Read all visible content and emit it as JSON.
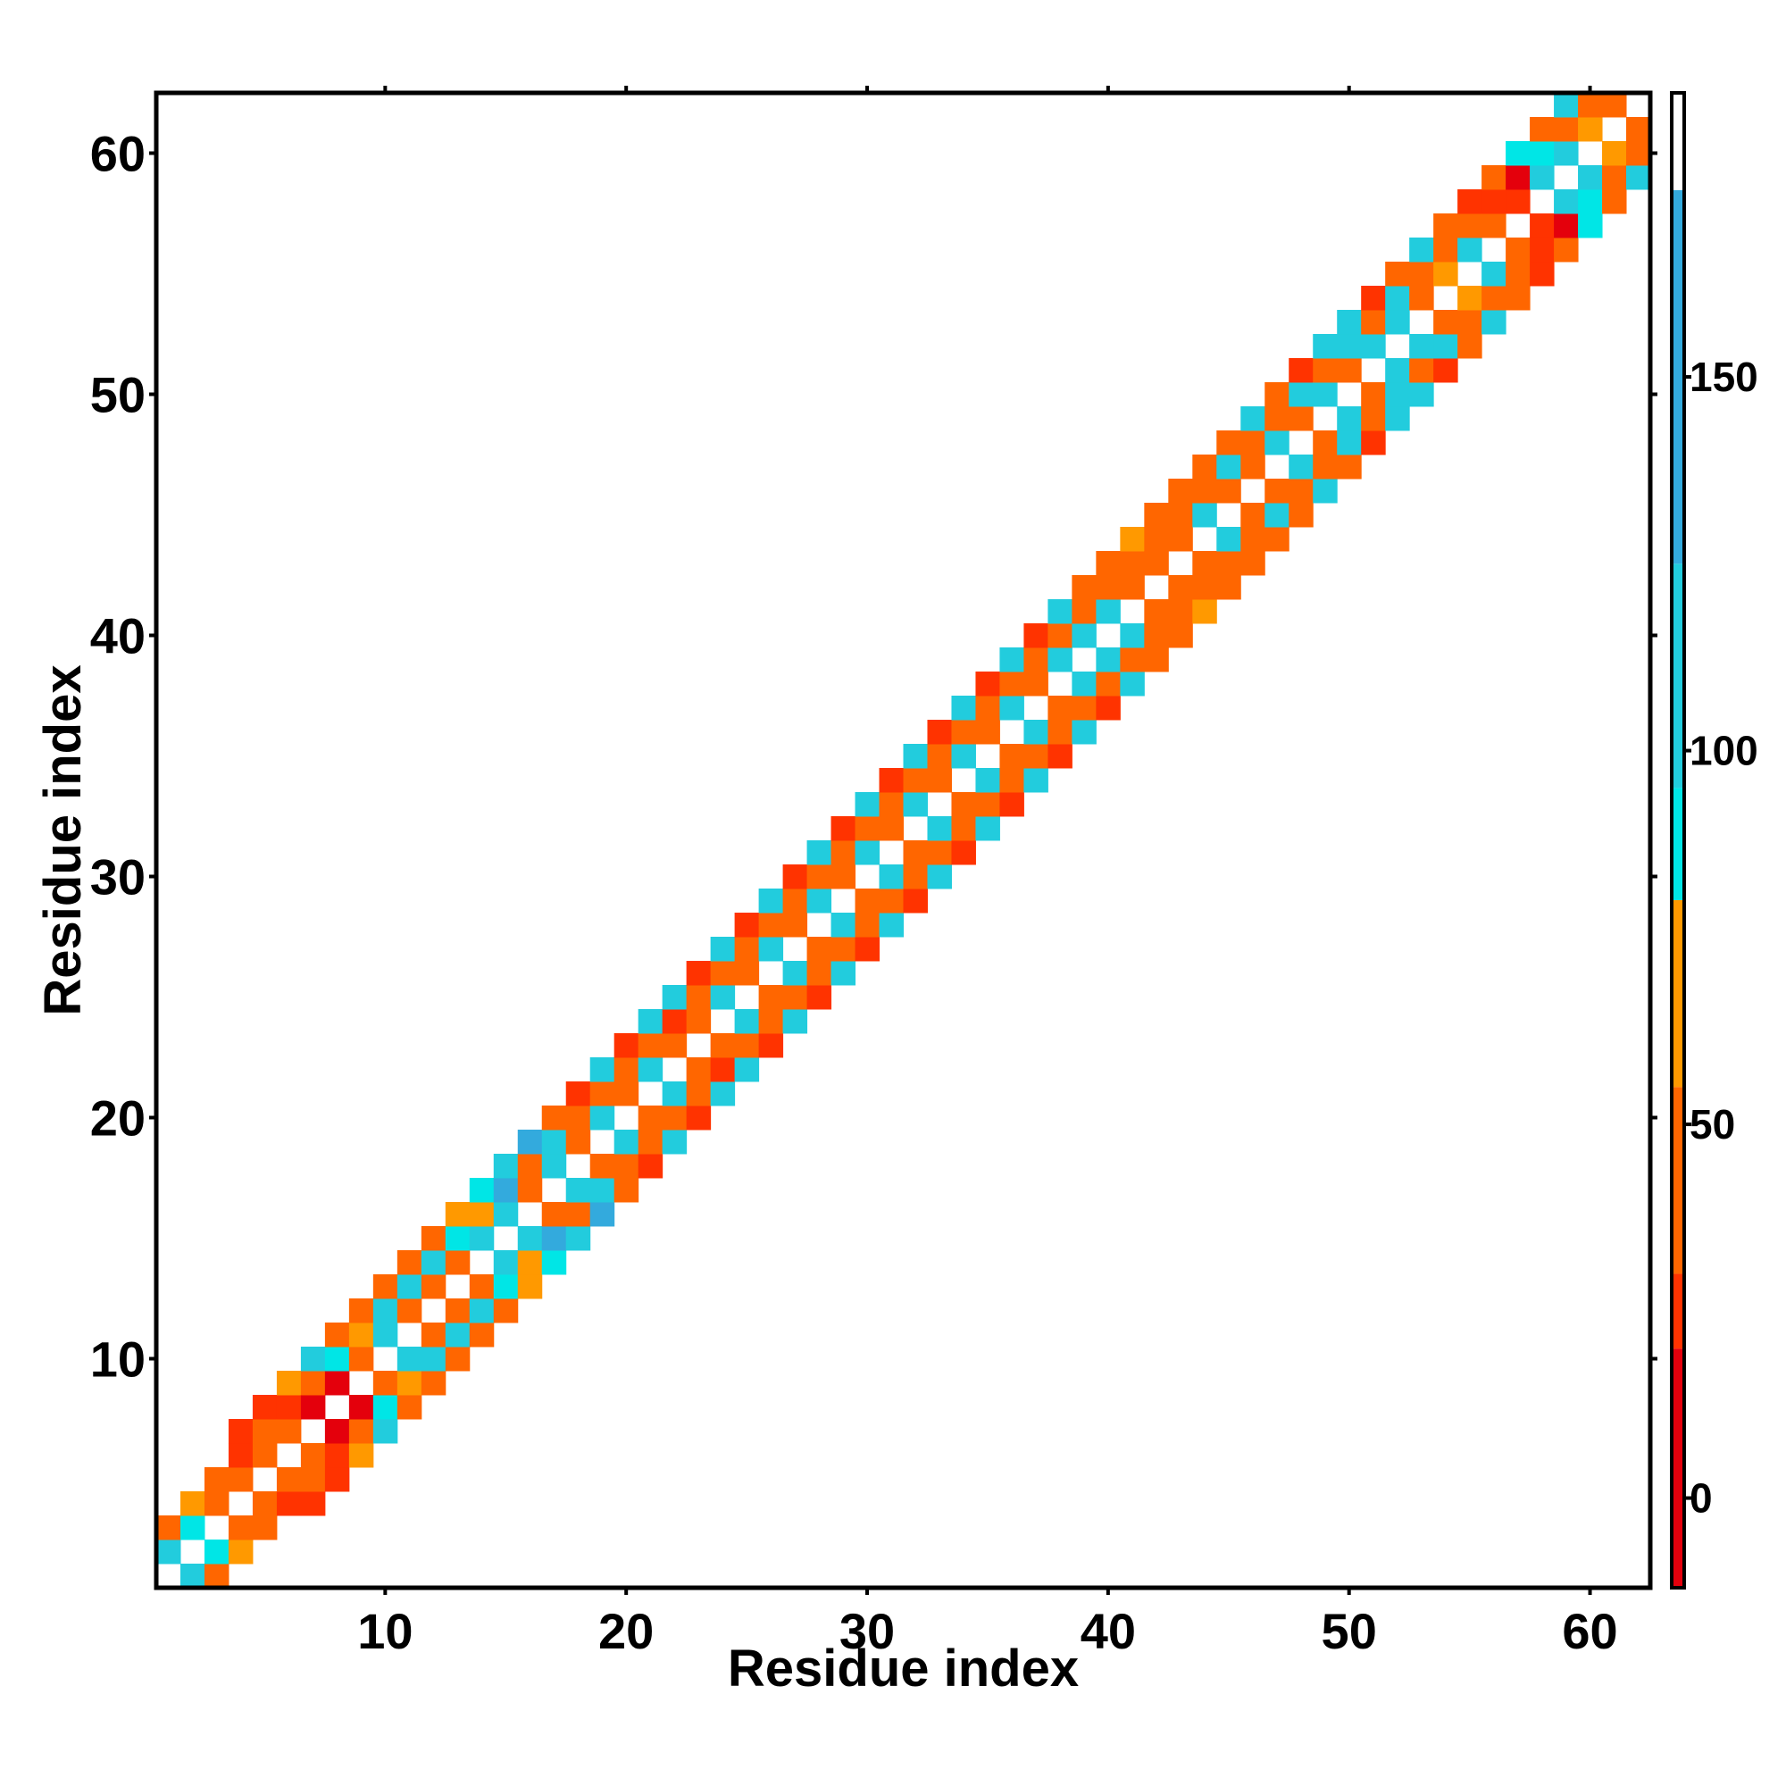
{
  "chart_data": {
    "type": "heatmap",
    "title": "",
    "xlabel": "Residue index",
    "ylabel": "Residue index",
    "xlim": [
      0.5,
      62.5
    ],
    "ylim": [
      0.5,
      62.5
    ],
    "x_ticks": [
      10,
      20,
      30,
      40,
      50,
      60
    ],
    "y_ticks": [
      10,
      20,
      30,
      40,
      50,
      60
    ],
    "n": 62,
    "diagonal_band_halfwidth": 3,
    "grid": false,
    "colorbar": {
      "range": [
        -12,
        188
      ],
      "ticks": [
        0,
        50,
        100,
        150
      ],
      "color_stops": [
        {
          "from": -12,
          "to": 20,
          "color": "#e4000c"
        },
        {
          "from": 20,
          "to": 30,
          "color": "#ff3300"
        },
        {
          "from": 30,
          "to": 55,
          "color": "#ff6600"
        },
        {
          "from": 55,
          "to": 80,
          "color": "#ff9900"
        },
        {
          "from": 80,
          "to": 95,
          "color": "#00e6e6"
        },
        {
          "from": 95,
          "to": 125,
          "color": "#22ccdd"
        },
        {
          "from": 125,
          "to": 175,
          "color": "#33aadd"
        },
        {
          "from": 175,
          "to": 188,
          "color": "#ffffff"
        }
      ]
    },
    "colormap_values": {
      "red": 5,
      "orange_red": 25,
      "orange": 42,
      "amber": 65,
      "cyan": 88,
      "turquoise": 110,
      "sky_blue": 140,
      "steel_blue": 165
    },
    "cells_note": "Symmetric contact map; value matrix entries for i<j listed in upper_triangle as [i, j, value], cells with |i-j|>3 are empty",
    "upper_triangle": [
      [
        1,
        2,
        110
      ],
      [
        1,
        3,
        30
      ],
      [
        2,
        3,
        88
      ],
      [
        2,
        4,
        65
      ],
      [
        3,
        4,
        42
      ],
      [
        3,
        5,
        42
      ],
      [
        4,
        5,
        30
      ],
      [
        4,
        6,
        25
      ],
      [
        4,
        7,
        20
      ],
      [
        5,
        6,
        30
      ],
      [
        5,
        7,
        42
      ],
      [
        5,
        8,
        20
      ],
      [
        6,
        7,
        30
      ],
      [
        6,
        8,
        20
      ],
      [
        6,
        9,
        65
      ],
      [
        7,
        8,
        5
      ],
      [
        7,
        9,
        30
      ],
      [
        7,
        10,
        110
      ],
      [
        8,
        9,
        5
      ],
      [
        8,
        10,
        88
      ],
      [
        8,
        11,
        42
      ],
      [
        9,
        10,
        42
      ],
      [
        9,
        11,
        65
      ],
      [
        9,
        12,
        42
      ],
      [
        10,
        11,
        110
      ],
      [
        10,
        12,
        110
      ],
      [
        10,
        13,
        42
      ],
      [
        11,
        12,
        42
      ],
      [
        11,
        13,
        110
      ],
      [
        11,
        14,
        42
      ],
      [
        12,
        13,
        42
      ],
      [
        12,
        14,
        110
      ],
      [
        12,
        15,
        42
      ],
      [
        13,
        14,
        42
      ],
      [
        13,
        15,
        88
      ],
      [
        13,
        16,
        65
      ],
      [
        14,
        15,
        110
      ],
      [
        14,
        16,
        65
      ],
      [
        14,
        17,
        88
      ],
      [
        15,
        16,
        110
      ],
      [
        15,
        17,
        140
      ],
      [
        15,
        18,
        110
      ],
      [
        16,
        17,
        42
      ],
      [
        16,
        18,
        42
      ],
      [
        16,
        19,
        140
      ],
      [
        17,
        18,
        110
      ],
      [
        17,
        19,
        110
      ],
      [
        17,
        20,
        42
      ],
      [
        18,
        19,
        30
      ],
      [
        18,
        20,
        42
      ],
      [
        18,
        21,
        25
      ],
      [
        19,
        20,
        110
      ],
      [
        19,
        21,
        42
      ],
      [
        19,
        22,
        110
      ],
      [
        20,
        21,
        42
      ],
      [
        20,
        22,
        30
      ],
      [
        20,
        23,
        25
      ],
      [
        21,
        22,
        110
      ],
      [
        21,
        23,
        42
      ],
      [
        21,
        24,
        110
      ],
      [
        22,
        23,
        42
      ],
      [
        22,
        24,
        25
      ],
      [
        22,
        25,
        110
      ],
      [
        23,
        24,
        42
      ],
      [
        23,
        25,
        30
      ],
      [
        23,
        26,
        25
      ],
      [
        24,
        25,
        110
      ],
      [
        24,
        26,
        42
      ],
      [
        24,
        27,
        110
      ],
      [
        25,
        26,
        42
      ],
      [
        25,
        27,
        30
      ],
      [
        25,
        28,
        25
      ],
      [
        26,
        27,
        110
      ],
      [
        26,
        28,
        42
      ],
      [
        26,
        29,
        110
      ],
      [
        27,
        28,
        42
      ],
      [
        27,
        29,
        30
      ],
      [
        27,
        30,
        25
      ],
      [
        28,
        29,
        110
      ],
      [
        28,
        30,
        42
      ],
      [
        28,
        31,
        110
      ],
      [
        29,
        30,
        42
      ],
      [
        29,
        31,
        30
      ],
      [
        29,
        32,
        25
      ],
      [
        30,
        31,
        110
      ],
      [
        30,
        32,
        42
      ],
      [
        30,
        33,
        110
      ],
      [
        31,
        32,
        42
      ],
      [
        31,
        33,
        30
      ],
      [
        31,
        34,
        25
      ],
      [
        32,
        33,
        110
      ],
      [
        32,
        34,
        42
      ],
      [
        32,
        35,
        110
      ],
      [
        33,
        34,
        42
      ],
      [
        33,
        35,
        30
      ],
      [
        33,
        36,
        25
      ],
      [
        34,
        35,
        110
      ],
      [
        34,
        36,
        42
      ],
      [
        34,
        37,
        110
      ],
      [
        35,
        36,
        42
      ],
      [
        35,
        37,
        30
      ],
      [
        35,
        38,
        25
      ],
      [
        36,
        37,
        110
      ],
      [
        36,
        38,
        42
      ],
      [
        36,
        39,
        110
      ],
      [
        37,
        38,
        42
      ],
      [
        37,
        39,
        30
      ],
      [
        37,
        40,
        25
      ],
      [
        38,
        39,
        110
      ],
      [
        38,
        40,
        42
      ],
      [
        38,
        41,
        110
      ],
      [
        39,
        40,
        110
      ],
      [
        39,
        41,
        42
      ],
      [
        39,
        42,
        42
      ],
      [
        40,
        41,
        110
      ],
      [
        40,
        42,
        42
      ],
      [
        40,
        43,
        42
      ],
      [
        41,
        42,
        42
      ],
      [
        41,
        43,
        42
      ],
      [
        41,
        44,
        65
      ],
      [
        42,
        43,
        42
      ],
      [
        42,
        44,
        42
      ],
      [
        42,
        45,
        42
      ],
      [
        43,
        44,
        42
      ],
      [
        43,
        45,
        42
      ],
      [
        43,
        46,
        42
      ],
      [
        44,
        45,
        110
      ],
      [
        44,
        46,
        42
      ],
      [
        44,
        47,
        42
      ],
      [
        45,
        46,
        42
      ],
      [
        45,
        47,
        110
      ],
      [
        45,
        48,
        42
      ],
      [
        46,
        47,
        42
      ],
      [
        46,
        48,
        42
      ],
      [
        46,
        49,
        110
      ],
      [
        47,
        48,
        110
      ],
      [
        47,
        49,
        42
      ],
      [
        47,
        50,
        42
      ],
      [
        48,
        49,
        42
      ],
      [
        48,
        50,
        110
      ],
      [
        48,
        51,
        25
      ],
      [
        49,
        50,
        110
      ],
      [
        49,
        51,
        42
      ],
      [
        49,
        52,
        110
      ],
      [
        50,
        51,
        42
      ],
      [
        50,
        52,
        110
      ],
      [
        50,
        53,
        110
      ],
      [
        51,
        52,
        110
      ],
      [
        51,
        53,
        42
      ],
      [
        51,
        54,
        25
      ],
      [
        52,
        53,
        110
      ],
      [
        52,
        54,
        110
      ],
      [
        52,
        55,
        42
      ],
      [
        53,
        54,
        42
      ],
      [
        53,
        55,
        42
      ],
      [
        53,
        56,
        110
      ],
      [
        54,
        55,
        65
      ],
      [
        54,
        56,
        42
      ],
      [
        54,
        57,
        42
      ],
      [
        55,
        56,
        110
      ],
      [
        55,
        57,
        42
      ],
      [
        55,
        58,
        25
      ],
      [
        56,
        57,
        42
      ],
      [
        56,
        58,
        25
      ],
      [
        56,
        59,
        42
      ],
      [
        57,
        58,
        25
      ],
      [
        57,
        59,
        5
      ],
      [
        57,
        60,
        88
      ],
      [
        58,
        59,
        110
      ],
      [
        58,
        60,
        88
      ],
      [
        58,
        61,
        42
      ],
      [
        59,
        60,
        110
      ],
      [
        59,
        61,
        42
      ],
      [
        59,
        62,
        110
      ],
      [
        60,
        61,
        65
      ],
      [
        60,
        62,
        42
      ],
      [
        61,
        62,
        42
      ]
    ]
  }
}
